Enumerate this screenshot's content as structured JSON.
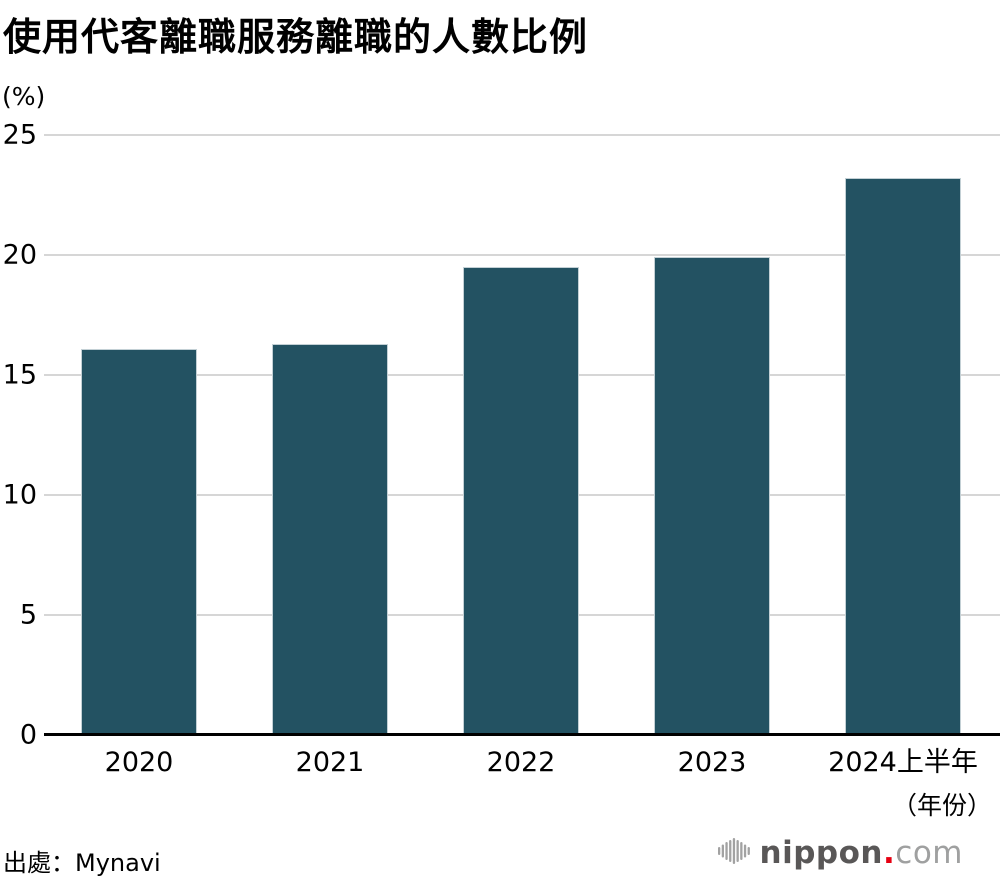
{
  "chart_data": {
    "type": "bar",
    "title": "使用代客離職服務離職的人數比例",
    "y_unit_label": "(%)",
    "x_unit_label": "（年份）",
    "categories": [
      "2020",
      "2021",
      "2022",
      "2023",
      "2024上半年"
    ],
    "values": [
      16.1,
      16.3,
      19.5,
      19.9,
      23.2
    ],
    "ylim": [
      0,
      25
    ],
    "yticks": [
      0,
      5,
      10,
      15,
      20,
      25
    ],
    "grid": true,
    "legend_position": "none",
    "bar_color": "#235262",
    "gridline_color": "#d6d6d6",
    "axis_color": "#000000"
  },
  "footer": {
    "source": "出處：Mynavi",
    "logo": {
      "icon": "soundwave-bars-icon",
      "nippon": "nippon",
      "dot": ".",
      "com": "com",
      "dot_color": "#e60012"
    }
  }
}
